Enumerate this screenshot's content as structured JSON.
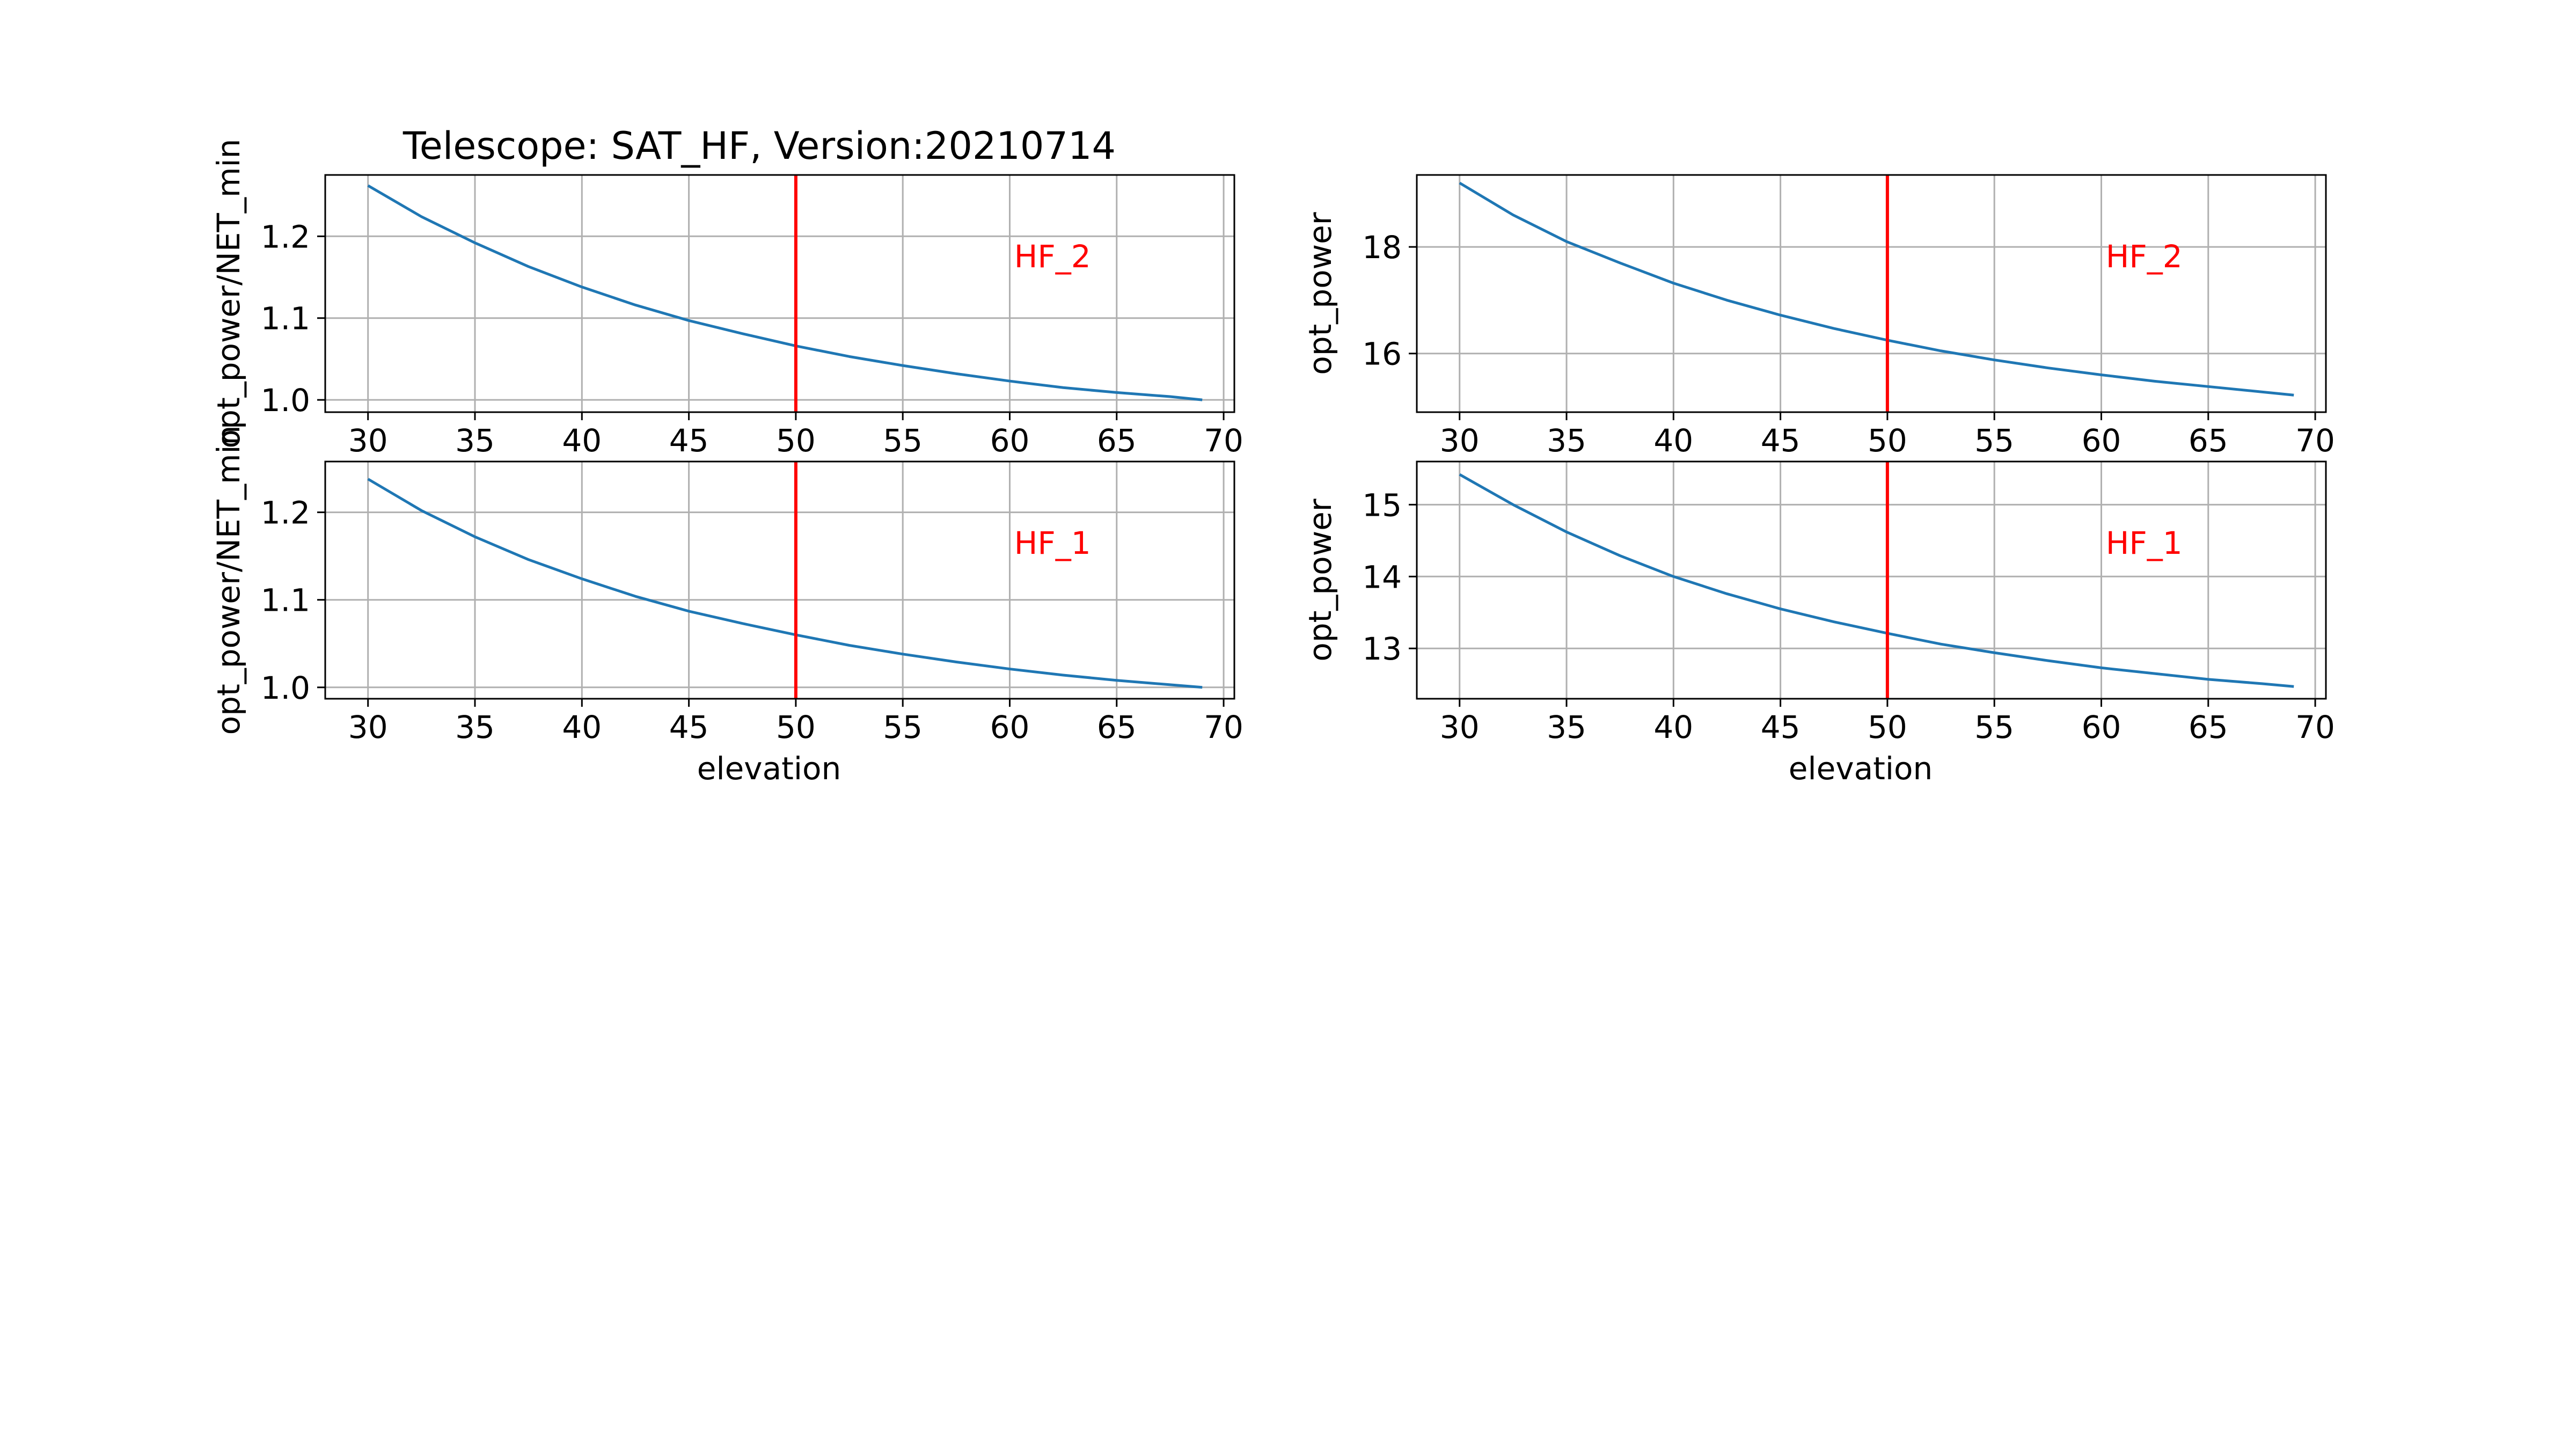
{
  "figure": {
    "title": "Telescope: SAT_HF,   Version:20210714",
    "colors": {
      "line": "#1f77b4",
      "marker": "#ff0000",
      "annotation": "#ff0000",
      "grid": "#b0b0b0",
      "axes": "#000000"
    }
  },
  "chart_data": [
    {
      "type": "line",
      "title": "Telescope: SAT_HF,   Version:20210714",
      "xlabel": "",
      "ylabel": "opt_power/NET_min",
      "annotation": "HF_2",
      "xlim": [
        28,
        70.5
      ],
      "ylim": [
        0.985,
        1.275
      ],
      "xticks": [
        30,
        35,
        40,
        45,
        50,
        55,
        60,
        65,
        70
      ],
      "yticks": [
        1.0,
        1.1,
        1.2
      ],
      "ytick_labels": [
        "1.0",
        "1.1",
        "1.2"
      ],
      "vline_x": 50,
      "grid": true,
      "series": [
        {
          "x": [
            30,
            32.5,
            35,
            37.5,
            40,
            42.5,
            45,
            47.5,
            50,
            52.5,
            55,
            57.5,
            60,
            62.5,
            65,
            67.5,
            69
          ],
          "values": [
            1.262,
            1.224,
            1.192,
            1.163,
            1.138,
            1.116,
            1.097,
            1.081,
            1.066,
            1.053,
            1.042,
            1.032,
            1.023,
            1.015,
            1.009,
            1.004,
            1.0
          ]
        }
      ]
    },
    {
      "type": "line",
      "title": "",
      "xlabel": "",
      "ylabel": "opt_power",
      "annotation": "HF_2",
      "xlim": [
        28,
        70.5
      ],
      "ylim": [
        14.9,
        19.35
      ],
      "xticks": [
        30,
        35,
        40,
        45,
        50,
        55,
        60,
        65,
        70
      ],
      "yticks": [
        16,
        18
      ],
      "ytick_labels": [
        "16",
        "18"
      ],
      "vline_x": 50,
      "grid": true,
      "series": [
        {
          "x": [
            30,
            32.5,
            35,
            37.5,
            40,
            42.5,
            45,
            47.5,
            50,
            52.5,
            55,
            57.5,
            60,
            62.5,
            65,
            67.5,
            69
          ],
          "values": [
            19.2,
            18.6,
            18.1,
            17.7,
            17.32,
            17.0,
            16.72,
            16.47,
            16.25,
            16.05,
            15.88,
            15.73,
            15.6,
            15.48,
            15.38,
            15.28,
            15.22
          ]
        }
      ]
    },
    {
      "type": "line",
      "title": "",
      "xlabel": "elevation",
      "ylabel": "opt_power/NET_min",
      "annotation": "HF_1",
      "xlim": [
        28,
        70.5
      ],
      "ylim": [
        0.987,
        1.258
      ],
      "xticks": [
        30,
        35,
        40,
        45,
        50,
        55,
        60,
        65,
        70
      ],
      "yticks": [
        1.0,
        1.1,
        1.2
      ],
      "ytick_labels": [
        "1.0",
        "1.1",
        "1.2"
      ],
      "vline_x": 50,
      "grid": true,
      "series": [
        {
          "x": [
            30,
            32.5,
            35,
            37.5,
            40,
            42.5,
            45,
            47.5,
            50,
            52.5,
            55,
            57.5,
            60,
            62.5,
            65,
            67.5,
            69
          ],
          "values": [
            1.238,
            1.202,
            1.172,
            1.146,
            1.124,
            1.104,
            1.087,
            1.073,
            1.06,
            1.048,
            1.038,
            1.029,
            1.021,
            1.014,
            1.008,
            1.003,
            1.0
          ]
        }
      ]
    },
    {
      "type": "line",
      "title": "",
      "xlabel": "elevation",
      "ylabel": "opt_power",
      "annotation": "HF_1",
      "xlim": [
        28,
        70.5
      ],
      "ylim": [
        12.3,
        15.6
      ],
      "xticks": [
        30,
        35,
        40,
        45,
        50,
        55,
        60,
        65,
        70
      ],
      "yticks": [
        13,
        14,
        15
      ],
      "ytick_labels": [
        "13",
        "14",
        "15"
      ],
      "vline_x": 50,
      "grid": true,
      "series": [
        {
          "x": [
            30,
            32.5,
            35,
            37.5,
            40,
            42.5,
            45,
            47.5,
            50,
            52.5,
            55,
            57.5,
            60,
            62.5,
            65,
            67.5,
            69
          ],
          "values": [
            15.42,
            15.0,
            14.62,
            14.29,
            14.0,
            13.76,
            13.55,
            13.37,
            13.21,
            13.06,
            12.94,
            12.83,
            12.73,
            12.65,
            12.57,
            12.51,
            12.47
          ]
        }
      ]
    }
  ]
}
